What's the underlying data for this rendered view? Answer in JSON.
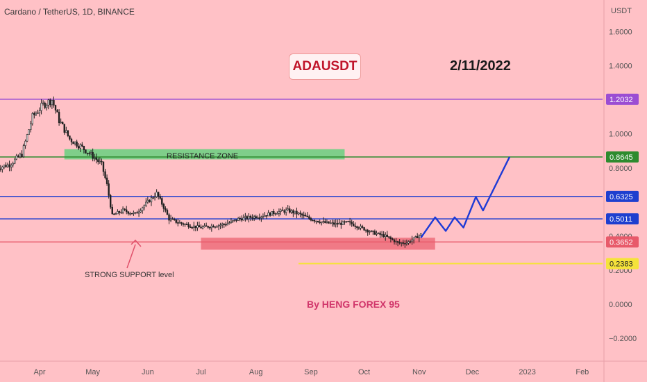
{
  "header": {
    "symbol_line": "Cardano / TetherUS, 1D, BINANCE",
    "axis_currency": "USDT"
  },
  "annotations": {
    "title": "ADAUSDT",
    "date": "2/11/2022",
    "author": "By HENG FOREX 95",
    "support_label": "STRONG SUPPORT level",
    "resistance_label": "RESISTANCE ZONE"
  },
  "colors": {
    "background": "#ffc1c6",
    "candle": "#1f1f1f",
    "purple_line": "#9b4dd3",
    "green_line": "#2e8b2e",
    "blue_line": "#1e3fcf",
    "red_line": "#e85a6a",
    "yellow_line": "#f5e33a",
    "resistance_zone": "#7fce8a",
    "support_zone": "#f07a86",
    "projection": "#1d3ad6"
  },
  "chart_data": {
    "type": "line",
    "title": "Cardano / TetherUS, 1D, BINANCE",
    "ylabel": "USDT",
    "ylim": [
      -0.26,
      1.72
    ],
    "y_ticks": [
      1.6,
      1.4,
      1.0,
      0.8,
      0.4,
      0.2,
      0.0,
      -0.2
    ],
    "y_tick_labels": [
      "1.6000",
      "1.4000",
      "1.0000",
      "0.8000",
      "0.4000",
      "0.2000",
      "0.0000",
      "−0.2000"
    ],
    "x_labels": [
      "Apr",
      "May",
      "Jun",
      "Jul",
      "Aug",
      "Sep",
      "Oct",
      "Nov",
      "Dec",
      "2023",
      "Feb"
    ],
    "price_levels": [
      {
        "label": "1.2032",
        "value": 1.2032,
        "color": "#9b4dd3"
      },
      {
        "label": "0.8645",
        "value": 0.8645,
        "color": "#2e8b2e"
      },
      {
        "label": "0.6325",
        "value": 0.6325,
        "color": "#1e3fcf"
      },
      {
        "label": "0.5011",
        "value": 0.5011,
        "color": "#1e3fcf"
      },
      {
        "label": "0.3652",
        "value": 0.3652,
        "color": "#e85a6a"
      },
      {
        "label": "0.2383",
        "value": 0.2383,
        "color": "#f5e33a"
      }
    ],
    "resistance_zone": {
      "y_from": 0.85,
      "y_to": 0.91,
      "x_from": "2022-04-15",
      "x_to": "2022-09-20"
    },
    "support_zone": {
      "y_from": 0.32,
      "y_to": 0.39,
      "x_from": "2022-07-01",
      "x_to": "2022-11-10"
    },
    "price_series": {
      "name": "ADAUSDT",
      "x": [
        "2022-03-08",
        "2022-03-15",
        "2022-03-22",
        "2022-03-28",
        "2022-04-03",
        "2022-04-08",
        "2022-04-12",
        "2022-04-18",
        "2022-04-25",
        "2022-05-02",
        "2022-05-06",
        "2022-05-09",
        "2022-05-12",
        "2022-05-18",
        "2022-05-25",
        "2022-06-01",
        "2022-06-06",
        "2022-06-10",
        "2022-06-13",
        "2022-06-18",
        "2022-06-25",
        "2022-07-01",
        "2022-07-08",
        "2022-07-15",
        "2022-07-22",
        "2022-07-29",
        "2022-08-05",
        "2022-08-12",
        "2022-08-19",
        "2022-08-25",
        "2022-09-01",
        "2022-09-08",
        "2022-09-15",
        "2022-09-22",
        "2022-09-29",
        "2022-10-06",
        "2022-10-13",
        "2022-10-20",
        "2022-10-25",
        "2022-10-30",
        "2022-11-02"
      ],
      "y": [
        0.8,
        0.82,
        0.88,
        1.1,
        1.17,
        1.2,
        1.08,
        0.97,
        0.92,
        0.86,
        0.82,
        0.7,
        0.52,
        0.55,
        0.53,
        0.6,
        0.65,
        0.57,
        0.5,
        0.48,
        0.46,
        0.45,
        0.46,
        0.47,
        0.5,
        0.51,
        0.52,
        0.54,
        0.55,
        0.53,
        0.5,
        0.48,
        0.47,
        0.48,
        0.45,
        0.42,
        0.4,
        0.36,
        0.36,
        0.39,
        0.41
      ]
    },
    "projection": {
      "name": "projection",
      "x": [
        "2022-11-02",
        "2022-11-10",
        "2022-11-16",
        "2022-11-21",
        "2022-11-26",
        "2022-12-03",
        "2022-12-07",
        "2022-12-22"
      ],
      "y": [
        0.39,
        0.51,
        0.43,
        0.51,
        0.45,
        0.63,
        0.55,
        0.865
      ]
    }
  }
}
